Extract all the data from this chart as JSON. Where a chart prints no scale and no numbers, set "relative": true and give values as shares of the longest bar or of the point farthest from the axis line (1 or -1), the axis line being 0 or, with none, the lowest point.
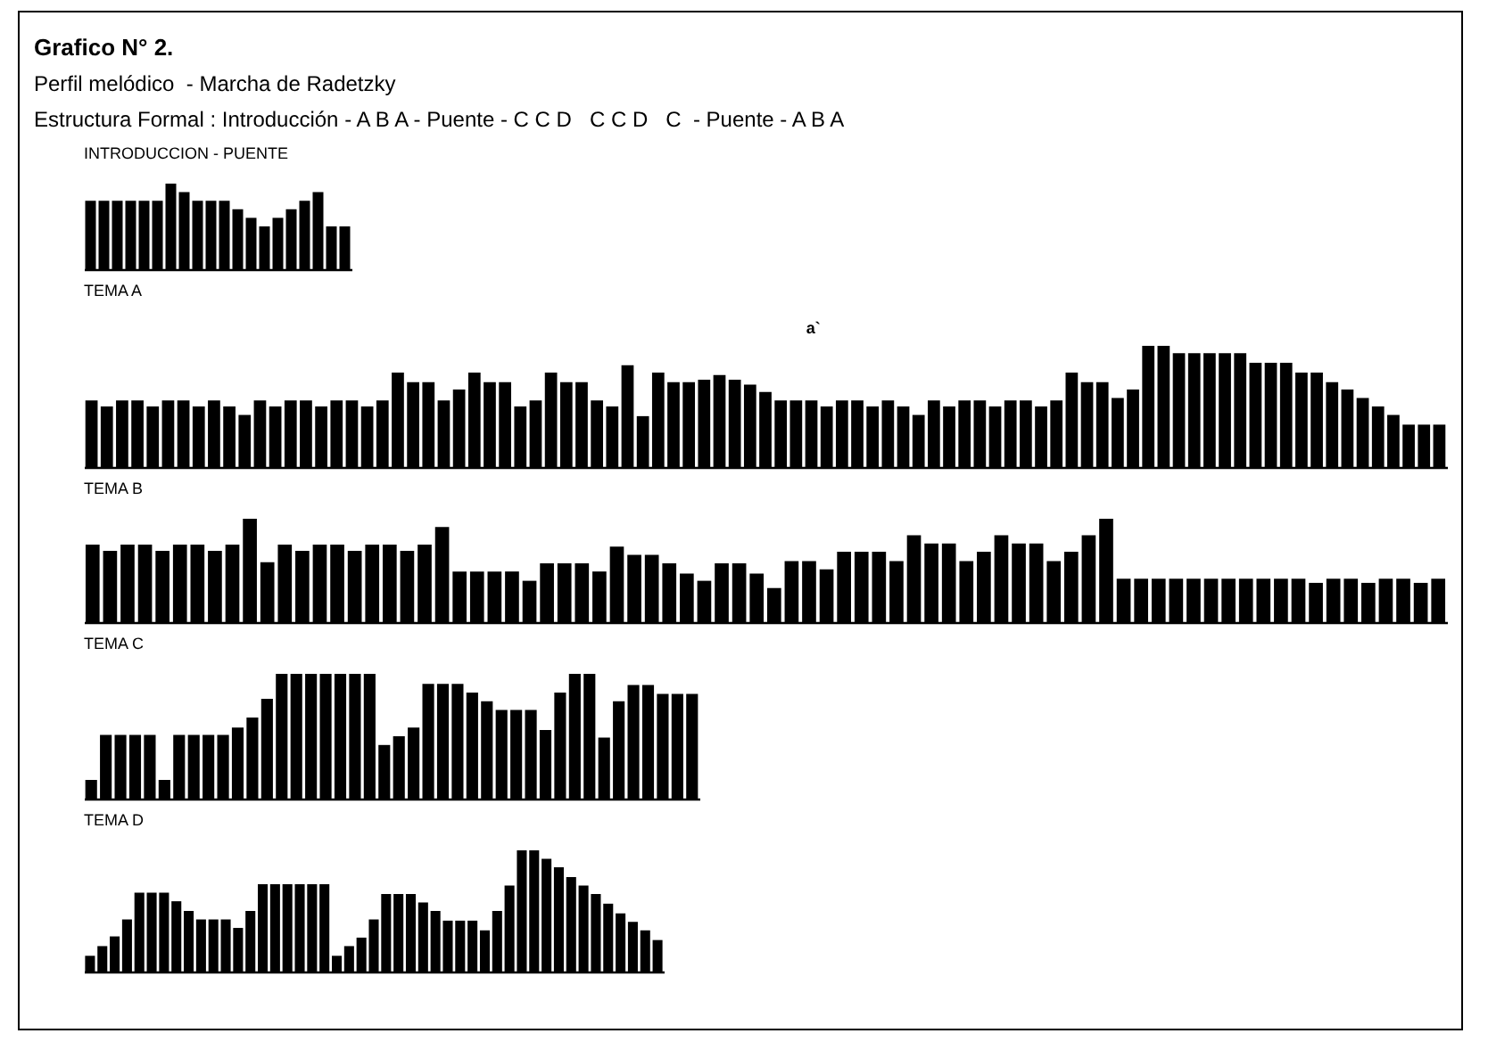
{
  "chart_data": [
    {
      "type": "other",
      "title": "Grafico N° 2.",
      "subtitle": "Perfil melódico  - Marcha de Radetzky",
      "annotations": [
        "Estructura Formal : Introducción - A B A - Puente - C C D   C C D   C  - Puente - A B A"
      ]
    },
    {
      "type": "bar",
      "title": "INTRODUCCION  -  PUENTE",
      "relative": true,
      "tick_labels": false,
      "color": "#000000",
      "categories": [
        null,
        null,
        null,
        null,
        null,
        null,
        null,
        null,
        null,
        null,
        null,
        null,
        null,
        null,
        null,
        null,
        null,
        null,
        null,
        null
      ],
      "values": [
        0.8,
        0.8,
        0.8,
        0.8,
        0.8,
        0.8,
        1,
        0.9,
        0.8,
        0.8,
        0.8,
        0.7,
        0.6,
        0.5,
        0.6,
        0.7,
        0.8,
        0.9,
        0.5,
        0.5
      ]
    },
    {
      "type": "bar",
      "title": "TEMA A",
      "annotations": [
        "a`"
      ],
      "relative": true,
      "tick_labels": false,
      "color": "#000000",
      "categories": [
        null,
        null,
        null,
        null,
        null,
        null,
        null,
        null,
        null,
        null,
        null,
        null,
        null,
        null,
        null,
        null,
        null,
        null,
        null,
        null,
        null,
        null,
        null,
        null,
        null,
        null,
        null,
        null,
        null,
        null,
        null,
        null,
        null,
        null,
        null,
        null,
        null,
        null,
        null,
        null,
        null,
        null,
        null,
        null,
        null,
        null,
        null,
        null,
        null,
        null,
        null,
        null,
        null,
        null,
        null,
        null,
        null,
        null,
        null,
        null,
        null,
        null,
        null,
        null,
        null,
        null,
        null,
        null,
        null,
        null,
        null,
        null,
        null,
        null,
        null,
        null,
        null,
        null,
        null,
        null,
        null,
        null,
        null,
        null,
        null,
        null,
        null,
        null,
        null
      ],
      "values": [
        0.55,
        0.5,
        0.55,
        0.55,
        0.5,
        0.55,
        0.55,
        0.5,
        0.55,
        0.5,
        0.43,
        0.55,
        0.5,
        0.55,
        0.55,
        0.5,
        0.55,
        0.55,
        0.5,
        0.55,
        0.78,
        0.7,
        0.7,
        0.55,
        0.64,
        0.78,
        0.7,
        0.7,
        0.5,
        0.55,
        0.78,
        0.7,
        0.7,
        0.55,
        0.5,
        0.84,
        0.42,
        0.78,
        0.7,
        0.7,
        0.72,
        0.76,
        0.72,
        0.68,
        0.62,
        0.55,
        0.55,
        0.55,
        0.5,
        0.55,
        0.55,
        0.5,
        0.55,
        0.5,
        0.43,
        0.55,
        0.5,
        0.55,
        0.55,
        0.5,
        0.55,
        0.55,
        0.5,
        0.55,
        0.78,
        0.7,
        0.7,
        0.57,
        0.64,
        1,
        1,
        0.94,
        0.94,
        0.94,
        0.94,
        0.94,
        0.86,
        0.86,
        0.86,
        0.78,
        0.78,
        0.7,
        0.64,
        0.57,
        0.5,
        0.43,
        0.35,
        0.35,
        0.35
      ]
    },
    {
      "type": "bar",
      "title": "TEMA B",
      "relative": true,
      "tick_labels": false,
      "color": "#000000",
      "categories": [
        null,
        null,
        null,
        null,
        null,
        null,
        null,
        null,
        null,
        null,
        null,
        null,
        null,
        null,
        null,
        null,
        null,
        null,
        null,
        null,
        null,
        null,
        null,
        null,
        null,
        null,
        null,
        null,
        null,
        null,
        null,
        null,
        null,
        null,
        null,
        null,
        null,
        null,
        null,
        null,
        null,
        null,
        null,
        null,
        null,
        null,
        null,
        null,
        null,
        null,
        null,
        null,
        null,
        null,
        null,
        null,
        null,
        null,
        null,
        null,
        null,
        null,
        null,
        null,
        null,
        null,
        null,
        null,
        null,
        null,
        null,
        null,
        null,
        null,
        null,
        null,
        null,
        null
      ],
      "values": [
        0.75,
        0.69,
        0.75,
        0.75,
        0.69,
        0.75,
        0.75,
        0.69,
        0.75,
        1,
        0.58,
        0.75,
        0.69,
        0.75,
        0.75,
        0.69,
        0.75,
        0.75,
        0.69,
        0.75,
        0.92,
        0.49,
        0.49,
        0.49,
        0.49,
        0.4,
        0.57,
        0.57,
        0.57,
        0.49,
        0.73,
        0.65,
        0.65,
        0.57,
        0.47,
        0.4,
        0.57,
        0.57,
        0.47,
        0.33,
        0.59,
        0.59,
        0.51,
        0.68,
        0.68,
        0.68,
        0.59,
        0.84,
        0.76,
        0.76,
        0.59,
        0.68,
        0.84,
        0.76,
        0.76,
        0.59,
        0.68,
        0.84,
        1,
        0.42,
        0.42,
        0.42,
        0.42,
        0.42,
        0.42,
        0.42,
        0.42,
        0.42,
        0.42,
        0.42,
        0.38,
        0.42,
        0.42,
        0.38,
        0.42,
        0.42,
        0.38,
        0.42
      ]
    },
    {
      "type": "bar",
      "title": "TEMA  C",
      "relative": true,
      "tick_labels": false,
      "color": "#000000",
      "categories": [
        null,
        null,
        null,
        null,
        null,
        null,
        null,
        null,
        null,
        null,
        null,
        null,
        null,
        null,
        null,
        null,
        null,
        null,
        null,
        null,
        null,
        null,
        null,
        null,
        null,
        null,
        null,
        null,
        null,
        null,
        null,
        null,
        null,
        null,
        null,
        null,
        null,
        null,
        null,
        null,
        null,
        null
      ],
      "values": [
        0.15,
        0.51,
        0.51,
        0.51,
        0.51,
        0.15,
        0.51,
        0.51,
        0.51,
        0.51,
        0.57,
        0.65,
        0.8,
        1,
        1,
        1,
        1,
        1,
        1,
        1,
        0.43,
        0.5,
        0.57,
        0.92,
        0.92,
        0.92,
        0.85,
        0.78,
        0.71,
        0.71,
        0.71,
        0.55,
        0.85,
        1,
        1,
        0.49,
        0.78,
        0.91,
        0.91,
        0.84,
        0.84,
        0.84
      ]
    },
    {
      "type": "bar",
      "title": "TEMA D",
      "relative": true,
      "tick_labels": false,
      "color": "#000000",
      "categories": [
        null,
        null,
        null,
        null,
        null,
        null,
        null,
        null,
        null,
        null,
        null,
        null,
        null,
        null,
        null,
        null,
        null,
        null,
        null,
        null,
        null,
        null,
        null,
        null,
        null,
        null,
        null,
        null,
        null,
        null,
        null,
        null,
        null,
        null,
        null,
        null,
        null,
        null,
        null,
        null,
        null,
        null,
        null,
        null,
        null,
        null,
        null
      ],
      "values": [
        0.13,
        0.21,
        0.29,
        0.43,
        0.65,
        0.65,
        0.65,
        0.58,
        0.5,
        0.43,
        0.43,
        0.43,
        0.36,
        0.5,
        0.72,
        0.72,
        0.72,
        0.72,
        0.72,
        0.72,
        0.13,
        0.21,
        0.28,
        0.43,
        0.64,
        0.64,
        0.64,
        0.57,
        0.5,
        0.42,
        0.42,
        0.42,
        0.34,
        0.5,
        0.71,
        1,
        1,
        0.93,
        0.86,
        0.78,
        0.71,
        0.64,
        0.56,
        0.48,
        0.41,
        0.34,
        0.26
      ]
    }
  ]
}
